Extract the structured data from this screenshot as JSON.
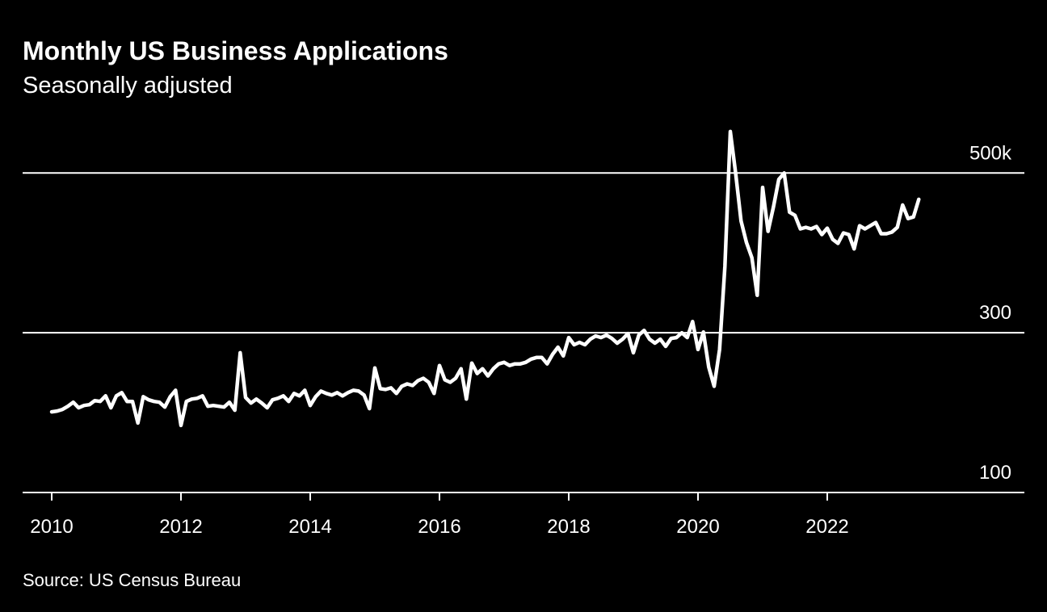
{
  "chart_data": {
    "type": "line",
    "title": "Monthly US Business Applications",
    "subtitle": "Seasonally adjusted",
    "source": "Source: US Census Bureau",
    "x": [
      "2010-01",
      "2010-02",
      "2010-03",
      "2010-04",
      "2010-05",
      "2010-06",
      "2010-07",
      "2010-08",
      "2010-09",
      "2010-10",
      "2010-11",
      "2010-12",
      "2011-01",
      "2011-02",
      "2011-03",
      "2011-04",
      "2011-05",
      "2011-06",
      "2011-07",
      "2011-08",
      "2011-09",
      "2011-10",
      "2011-11",
      "2011-12",
      "2012-01",
      "2012-02",
      "2012-03",
      "2012-04",
      "2012-05",
      "2012-06",
      "2012-07",
      "2012-08",
      "2012-09",
      "2012-10",
      "2012-11",
      "2012-12",
      "2013-01",
      "2013-02",
      "2013-03",
      "2013-04",
      "2013-05",
      "2013-06",
      "2013-07",
      "2013-08",
      "2013-09",
      "2013-10",
      "2013-11",
      "2013-12",
      "2014-01",
      "2014-02",
      "2014-03",
      "2014-04",
      "2014-05",
      "2014-06",
      "2014-07",
      "2014-08",
      "2014-09",
      "2014-10",
      "2014-11",
      "2014-12",
      "2015-01",
      "2015-02",
      "2015-03",
      "2015-04",
      "2015-05",
      "2015-06",
      "2015-07",
      "2015-08",
      "2015-09",
      "2015-10",
      "2015-11",
      "2015-12",
      "2016-01",
      "2016-02",
      "2016-03",
      "2016-04",
      "2016-05",
      "2016-06",
      "2016-07",
      "2016-08",
      "2016-09",
      "2016-10",
      "2016-11",
      "2016-12",
      "2017-01",
      "2017-02",
      "2017-03",
      "2017-04",
      "2017-05",
      "2017-06",
      "2017-07",
      "2017-08",
      "2017-09",
      "2017-10",
      "2017-11",
      "2017-12",
      "2018-01",
      "2018-02",
      "2018-03",
      "2018-04",
      "2018-05",
      "2018-06",
      "2018-07",
      "2018-08",
      "2018-09",
      "2018-10",
      "2018-11",
      "2018-12",
      "2019-01",
      "2019-02",
      "2019-03",
      "2019-04",
      "2019-05",
      "2019-06",
      "2019-07",
      "2019-08",
      "2019-09",
      "2019-10",
      "2019-11",
      "2019-12",
      "2020-01",
      "2020-02",
      "2020-03",
      "2020-04",
      "2020-05",
      "2020-06",
      "2020-07",
      "2020-08",
      "2020-09",
      "2020-10",
      "2020-11",
      "2020-12",
      "2021-01",
      "2021-02",
      "2021-03",
      "2021-04",
      "2021-05",
      "2021-06",
      "2021-07",
      "2021-08",
      "2021-09",
      "2021-10",
      "2021-11",
      "2021-12",
      "2022-01",
      "2022-02",
      "2022-03",
      "2022-04",
      "2022-05",
      "2022-06",
      "2022-07",
      "2022-08",
      "2022-09",
      "2022-10",
      "2022-11",
      "2022-12",
      "2023-01",
      "2023-02",
      "2023-03",
      "2023-04",
      "2023-05",
      "2023-06"
    ],
    "series": [
      {
        "name": "Business applications",
        "color": "#ffffff",
        "values": [
          201,
          202,
          204,
          208,
          213,
          206,
          209,
          210,
          215,
          214,
          221,
          206,
          221,
          225,
          214,
          214,
          187,
          220,
          216,
          214,
          213,
          207,
          220,
          228,
          184,
          214,
          217,
          218,
          221,
          208,
          209,
          208,
          207,
          213,
          203,
          275,
          219,
          212,
          217,
          212,
          206,
          216,
          218,
          221,
          214,
          224,
          221,
          228,
          209,
          220,
          227,
          224,
          222,
          225,
          221,
          225,
          228,
          227,
          222,
          205,
          256,
          230,
          229,
          231,
          224,
          233,
          236,
          234,
          240,
          243,
          238,
          224,
          259,
          241,
          238,
          243,
          255,
          217,
          262,
          249,
          255,
          246,
          255,
          261,
          263,
          259,
          261,
          261,
          263,
          267,
          269,
          269,
          261,
          273,
          282,
          271,
          294,
          285,
          288,
          285,
          292,
          296,
          294,
          297,
          293,
          287,
          292,
          299,
          275,
          297,
          303,
          292,
          287,
          292,
          283,
          293,
          294,
          300,
          294,
          314,
          279,
          301,
          257,
          233,
          279,
          383,
          552,
          499,
          440,
          413,
          394,
          347,
          482,
          427,
          457,
          492,
          500,
          451,
          447,
          430,
          432,
          430,
          433,
          423,
          431,
          417,
          412,
          425,
          423,
          405,
          434,
          430,
          434,
          438,
          424,
          424,
          426,
          432,
          460,
          443,
          445,
          467
        ]
      }
    ],
    "xlim": [
      2009.55,
      2025.05
    ],
    "xticks": [
      2010,
      2012,
      2014,
      2016,
      2018,
      2020,
      2022
    ],
    "ylim": [
      100,
      565
    ],
    "yticks": [
      100,
      300,
      {
        "value": 500,
        "label": "500k"
      }
    ],
    "grid": true
  }
}
